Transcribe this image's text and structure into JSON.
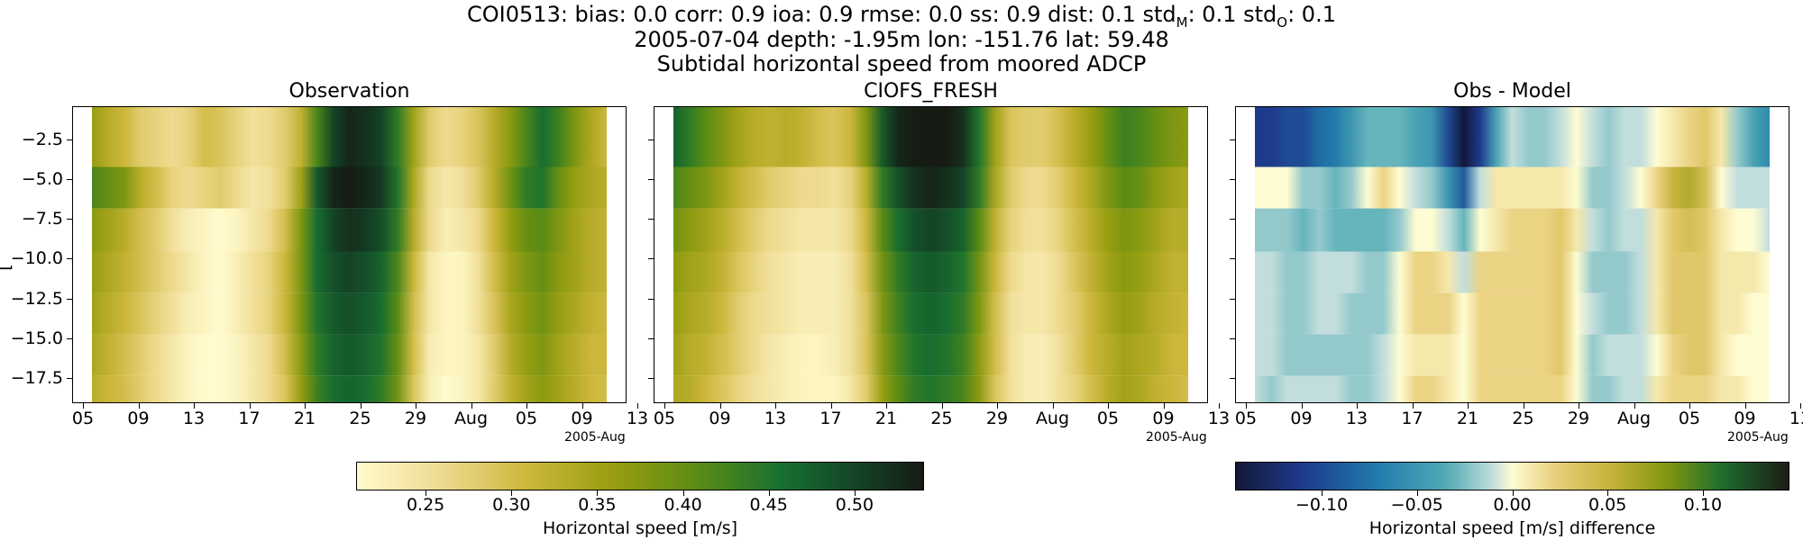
{
  "header": {
    "line1": "COI0513: bias: 0.0  corr: 0.9  ioa: 0.9  rmse: 0.0  ss: 0.9  dist: 0.1  std",
    "line1_sub1": "M",
    "line1_mid": ": 0.1  std",
    "line1_sub2": "O",
    "line1_end": ": 0.1",
    "line2": "2005-07-04 depth: -1.95m lon: -151.76 lat: 59.48",
    "line3": "Subtidal horizontal speed from moored ADCP"
  },
  "ylabel_stub": "[",
  "x_offset_label": "2005-Aug",
  "chart_data": [
    {
      "type": "heatmap",
      "title": "Observation",
      "x_ticks": [
        "05",
        "09",
        "13",
        "17",
        "21",
        "25",
        "29",
        "Aug",
        "05",
        "09",
        "13"
      ],
      "y_ticks": [
        "-2.5",
        "-5.0",
        "-7.5",
        "-10.0",
        "-12.5",
        "-15.0",
        "-17.5"
      ],
      "y_range": [
        -19.0,
        -0.5
      ],
      "colormap": "speed",
      "colorbar": {
        "label": "Horizontal speed [m/s]",
        "range": [
          0.21,
          0.54
        ],
        "ticks": [
          "0.25",
          "0.30",
          "0.35",
          "0.40",
          "0.45",
          "0.50"
        ],
        "tick_values": [
          0.25,
          0.3,
          0.35,
          0.4,
          0.45,
          0.5
        ]
      },
      "depth_rows": [
        {
          "depth": -2.0,
          "values": [
            0.36,
            0.33,
            0.31,
            0.28,
            0.27,
            0.26,
            0.27,
            0.3,
            0.29,
            0.27,
            0.25,
            0.26,
            0.28,
            0.32,
            0.42,
            0.5,
            0.53,
            0.52,
            0.5,
            0.44,
            0.35,
            0.28,
            0.26,
            0.27,
            0.29,
            0.33,
            0.37,
            0.42,
            0.46,
            0.43,
            0.38,
            0.34,
            0.31
          ]
        },
        {
          "depth": -5.0,
          "values": [
            0.42,
            0.4,
            0.38,
            0.33,
            0.3,
            0.27,
            0.26,
            0.27,
            0.28,
            0.26,
            0.24,
            0.25,
            0.28,
            0.35,
            0.48,
            0.53,
            0.54,
            0.53,
            0.51,
            0.45,
            0.34,
            0.26,
            0.24,
            0.25,
            0.28,
            0.33,
            0.39,
            0.44,
            0.45,
            0.4,
            0.36,
            0.34,
            0.33
          ]
        },
        {
          "depth": -7.5,
          "values": [
            0.37,
            0.35,
            0.33,
            0.3,
            0.28,
            0.25,
            0.23,
            0.22,
            0.21,
            0.22,
            0.24,
            0.26,
            0.3,
            0.38,
            0.46,
            0.5,
            0.52,
            0.51,
            0.49,
            0.44,
            0.33,
            0.26,
            0.23,
            0.24,
            0.26,
            0.31,
            0.36,
            0.4,
            0.41,
            0.38,
            0.35,
            0.33,
            0.32
          ]
        },
        {
          "depth": -10.0,
          "values": [
            0.36,
            0.34,
            0.32,
            0.3,
            0.28,
            0.26,
            0.24,
            0.22,
            0.21,
            0.23,
            0.25,
            0.27,
            0.31,
            0.38,
            0.46,
            0.49,
            0.5,
            0.49,
            0.47,
            0.42,
            0.31,
            0.24,
            0.22,
            0.22,
            0.25,
            0.3,
            0.35,
            0.38,
            0.4,
            0.37,
            0.35,
            0.33,
            0.32
          ]
        },
        {
          "depth": -12.5,
          "values": [
            0.35,
            0.33,
            0.31,
            0.29,
            0.27,
            0.25,
            0.23,
            0.22,
            0.21,
            0.23,
            0.25,
            0.27,
            0.31,
            0.38,
            0.45,
            0.48,
            0.49,
            0.48,
            0.46,
            0.41,
            0.3,
            0.24,
            0.22,
            0.22,
            0.25,
            0.29,
            0.34,
            0.37,
            0.39,
            0.36,
            0.34,
            0.32,
            0.31
          ]
        },
        {
          "depth": -15.0,
          "values": [
            0.34,
            0.32,
            0.3,
            0.28,
            0.26,
            0.24,
            0.22,
            0.21,
            0.21,
            0.22,
            0.24,
            0.26,
            0.3,
            0.37,
            0.44,
            0.47,
            0.48,
            0.47,
            0.45,
            0.4,
            0.3,
            0.23,
            0.22,
            0.22,
            0.24,
            0.28,
            0.33,
            0.36,
            0.38,
            0.35,
            0.33,
            0.31,
            0.31
          ]
        },
        {
          "depth": -18.0,
          "values": [
            0.33,
            0.31,
            0.3,
            0.28,
            0.26,
            0.24,
            0.22,
            0.21,
            0.21,
            0.22,
            0.24,
            0.26,
            0.29,
            0.36,
            0.43,
            0.46,
            0.47,
            0.46,
            0.44,
            0.39,
            0.29,
            0.23,
            0.21,
            0.22,
            0.24,
            0.28,
            0.32,
            0.35,
            0.37,
            0.35,
            0.33,
            0.31,
            0.3
          ]
        }
      ]
    },
    {
      "type": "heatmap",
      "title": "CIOFS_FRESH",
      "x_ticks": [
        "05",
        "09",
        "13",
        "17",
        "21",
        "25",
        "29",
        "Aug",
        "05",
        "09",
        "13"
      ],
      "y_ticks": [
        "-2.5",
        "-5.0",
        "-7.5",
        "-10.0",
        "-12.5",
        "-15.0",
        "-17.5"
      ],
      "y_range": [
        -19.0,
        -0.5
      ],
      "colormap": "speed",
      "colorbar_shared_with": "Observation",
      "depth_rows": [
        {
          "depth": -2.0,
          "values": [
            0.47,
            0.44,
            0.41,
            0.38,
            0.35,
            0.33,
            0.32,
            0.33,
            0.32,
            0.3,
            0.29,
            0.31,
            0.38,
            0.48,
            0.53,
            0.54,
            0.54,
            0.54,
            0.52,
            0.45,
            0.35,
            0.29,
            0.28,
            0.28,
            0.3,
            0.33,
            0.36,
            0.4,
            0.43,
            0.42,
            0.4,
            0.38,
            0.37
          ]
        },
        {
          "depth": -5.0,
          "values": [
            0.42,
            0.4,
            0.38,
            0.35,
            0.32,
            0.3,
            0.28,
            0.27,
            0.26,
            0.26,
            0.25,
            0.27,
            0.33,
            0.44,
            0.49,
            0.52,
            0.53,
            0.52,
            0.5,
            0.44,
            0.34,
            0.28,
            0.26,
            0.26,
            0.28,
            0.31,
            0.34,
            0.38,
            0.41,
            0.4,
            0.37,
            0.35,
            0.34
          ]
        },
        {
          "depth": -7.5,
          "values": [
            0.39,
            0.37,
            0.35,
            0.33,
            0.3,
            0.28,
            0.26,
            0.25,
            0.24,
            0.24,
            0.24,
            0.26,
            0.31,
            0.41,
            0.46,
            0.49,
            0.5,
            0.49,
            0.47,
            0.41,
            0.32,
            0.27,
            0.25,
            0.25,
            0.27,
            0.3,
            0.33,
            0.36,
            0.38,
            0.37,
            0.35,
            0.33,
            0.33
          ]
        },
        {
          "depth": -10.0,
          "values": [
            0.37,
            0.35,
            0.34,
            0.32,
            0.29,
            0.27,
            0.25,
            0.24,
            0.23,
            0.23,
            0.23,
            0.25,
            0.3,
            0.39,
            0.44,
            0.47,
            0.48,
            0.47,
            0.45,
            0.39,
            0.31,
            0.26,
            0.24,
            0.24,
            0.26,
            0.29,
            0.32,
            0.35,
            0.37,
            0.36,
            0.34,
            0.32,
            0.32
          ]
        },
        {
          "depth": -12.5,
          "values": [
            0.36,
            0.34,
            0.33,
            0.31,
            0.28,
            0.26,
            0.25,
            0.24,
            0.23,
            0.23,
            0.23,
            0.25,
            0.29,
            0.38,
            0.43,
            0.46,
            0.47,
            0.46,
            0.44,
            0.38,
            0.3,
            0.25,
            0.24,
            0.24,
            0.26,
            0.28,
            0.31,
            0.34,
            0.36,
            0.35,
            0.33,
            0.32,
            0.31
          ]
        },
        {
          "depth": -15.0,
          "values": [
            0.35,
            0.33,
            0.32,
            0.3,
            0.28,
            0.26,
            0.24,
            0.23,
            0.22,
            0.22,
            0.23,
            0.25,
            0.29,
            0.37,
            0.42,
            0.45,
            0.46,
            0.45,
            0.43,
            0.37,
            0.3,
            0.25,
            0.23,
            0.23,
            0.25,
            0.28,
            0.31,
            0.33,
            0.35,
            0.34,
            0.33,
            0.31,
            0.31
          ]
        },
        {
          "depth": -18.0,
          "values": [
            0.34,
            0.33,
            0.31,
            0.29,
            0.27,
            0.25,
            0.24,
            0.23,
            0.22,
            0.22,
            0.22,
            0.24,
            0.28,
            0.36,
            0.41,
            0.44,
            0.45,
            0.44,
            0.42,
            0.37,
            0.29,
            0.25,
            0.23,
            0.23,
            0.25,
            0.27,
            0.3,
            0.33,
            0.35,
            0.34,
            0.32,
            0.31,
            0.3
          ]
        }
      ]
    },
    {
      "type": "heatmap",
      "title": "Obs - Model",
      "x_ticks": [
        "05",
        "09",
        "13",
        "17",
        "21",
        "25",
        "29",
        "Aug",
        "05",
        "09",
        "13"
      ],
      "y_ticks": [
        "-2.5",
        "-5.0",
        "-7.5",
        "-10.0",
        "-12.5",
        "-15.0",
        "-17.5"
      ],
      "y_range": [
        -19.0,
        -0.5
      ],
      "colormap": "delta",
      "colorbar": {
        "label": "Horizontal speed [m/s] difference",
        "range": [
          -0.145,
          0.145
        ],
        "ticks": [
          "−0.10",
          "−0.05",
          "0.00",
          "0.05",
          "0.10"
        ],
        "tick_values": [
          -0.1,
          -0.05,
          0.0,
          0.05,
          0.1
        ]
      },
      "depth_rows": [
        {
          "depth": -2.0,
          "values": [
            -0.11,
            -0.11,
            -0.1,
            -0.1,
            -0.08,
            -0.07,
            -0.05,
            -0.03,
            -0.03,
            -0.03,
            -0.04,
            -0.05,
            -0.1,
            -0.16,
            -0.11,
            -0.04,
            -0.01,
            -0.02,
            -0.02,
            -0.01,
            0.0,
            -0.01,
            -0.02,
            -0.01,
            -0.01,
            0.0,
            0.01,
            0.02,
            0.03,
            0.01,
            -0.02,
            -0.04,
            -0.06
          ]
        },
        {
          "depth": -5.0,
          "values": [
            0.0,
            0.0,
            0.0,
            -0.02,
            -0.02,
            -0.03,
            -0.02,
            0.0,
            0.02,
            0.0,
            -0.01,
            -0.02,
            -0.05,
            -0.09,
            -0.01,
            0.01,
            0.01,
            0.01,
            0.01,
            0.01,
            0.0,
            -0.02,
            -0.02,
            -0.01,
            0.0,
            0.02,
            0.05,
            0.06,
            0.04,
            0.0,
            -0.01,
            -0.01,
            -0.01
          ]
        },
        {
          "depth": -7.5,
          "values": [
            -0.02,
            -0.02,
            -0.02,
            -0.03,
            -0.02,
            -0.03,
            -0.03,
            -0.03,
            -0.03,
            -0.02,
            0.0,
            0.0,
            -0.01,
            -0.03,
            0.0,
            0.01,
            0.02,
            0.02,
            0.02,
            0.03,
            0.01,
            -0.01,
            -0.02,
            -0.01,
            -0.01,
            0.01,
            0.03,
            0.04,
            0.03,
            0.01,
            0.0,
            0.0,
            -0.01
          ]
        },
        {
          "depth": -10.0,
          "values": [
            -0.01,
            -0.01,
            -0.02,
            -0.02,
            -0.01,
            -0.01,
            -0.01,
            -0.02,
            -0.02,
            0.0,
            0.02,
            0.02,
            0.01,
            -0.01,
            0.02,
            0.02,
            0.02,
            0.02,
            0.02,
            0.03,
            0.0,
            -0.02,
            -0.02,
            -0.02,
            -0.01,
            0.01,
            0.03,
            0.03,
            0.03,
            0.01,
            0.01,
            0.01,
            0.0
          ]
        },
        {
          "depth": -12.5,
          "values": [
            -0.01,
            -0.01,
            -0.02,
            -0.02,
            -0.01,
            -0.01,
            -0.02,
            -0.02,
            -0.02,
            0.0,
            0.02,
            0.02,
            0.02,
            0.0,
            0.02,
            0.02,
            0.02,
            0.02,
            0.02,
            0.03,
            0.0,
            -0.01,
            -0.02,
            -0.02,
            -0.01,
            0.01,
            0.03,
            0.03,
            0.03,
            0.01,
            0.01,
            0.0,
            0.0
          ]
        },
        {
          "depth": -15.0,
          "values": [
            -0.01,
            -0.01,
            -0.02,
            -0.02,
            -0.02,
            -0.02,
            -0.02,
            -0.02,
            -0.01,
            0.0,
            0.01,
            0.01,
            0.01,
            0.0,
            0.02,
            0.02,
            0.02,
            0.02,
            0.02,
            0.03,
            0.0,
            -0.02,
            -0.01,
            -0.01,
            -0.01,
            0.0,
            0.02,
            0.03,
            0.03,
            0.01,
            0.0,
            0.0,
            0.0
          ]
        },
        {
          "depth": -18.0,
          "values": [
            -0.01,
            -0.02,
            -0.01,
            -0.01,
            -0.01,
            -0.01,
            -0.02,
            -0.02,
            -0.01,
            0.0,
            0.02,
            0.02,
            0.01,
            0.0,
            0.02,
            0.02,
            0.02,
            0.02,
            0.02,
            0.02,
            0.0,
            -0.02,
            -0.02,
            -0.01,
            -0.01,
            0.01,
            0.02,
            0.02,
            0.02,
            0.01,
            0.01,
            0.0,
            0.0
          ]
        }
      ]
    }
  ]
}
